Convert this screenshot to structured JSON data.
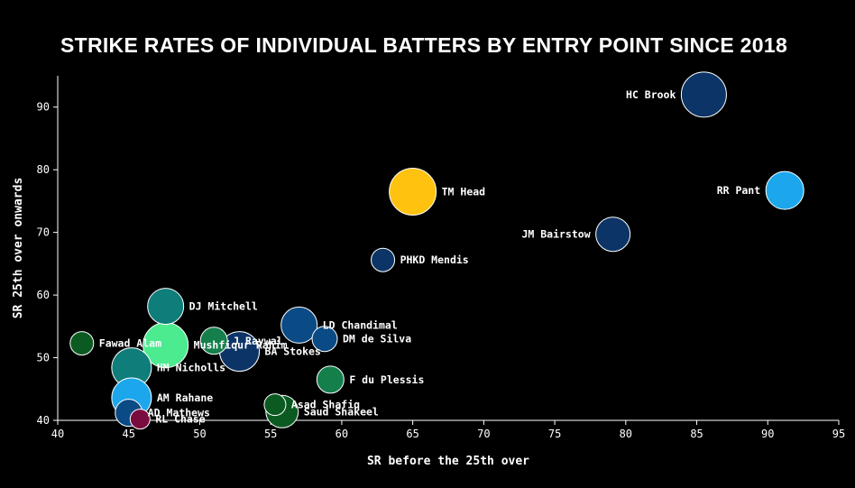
{
  "chart_data": {
    "type": "scatter",
    "title": "STRIKE RATES OF INDIVIDUAL BATTERS BY ENTRY POINT SINCE 2018",
    "xlabel": "SR before the 25th over",
    "ylabel": "SR 25th over onwards",
    "xlim": [
      40,
      95
    ],
    "ylim": [
      40,
      95
    ],
    "xticks": [
      40,
      45,
      50,
      55,
      60,
      65,
      70,
      75,
      80,
      85,
      90,
      95
    ],
    "yticks": [
      40,
      50,
      60,
      70,
      80,
      90
    ],
    "grid": false,
    "points": [
      {
        "name": "HC Brook",
        "x": 85.5,
        "y": 92.0,
        "r": 25,
        "color": "#0d3466",
        "label_side": "left"
      },
      {
        "name": "RR Pant",
        "x": 91.2,
        "y": 76.7,
        "r": 21,
        "color": "#1ca7ec",
        "label_side": "left"
      },
      {
        "name": "JM Bairstow",
        "x": 79.1,
        "y": 69.7,
        "r": 19,
        "color": "#0d3466",
        "label_side": "left"
      },
      {
        "name": "TM Head",
        "x": 65.0,
        "y": 76.5,
        "r": 26,
        "color": "#ffc20e",
        "label_side": "right"
      },
      {
        "name": "PHKD Mendis",
        "x": 62.9,
        "y": 65.6,
        "r": 13,
        "color": "#0d3466",
        "label_side": "right"
      },
      {
        "name": "DJ Mitchell",
        "x": 47.6,
        "y": 58.2,
        "r": 20,
        "color": "#0f7d7a",
        "label_side": "right"
      },
      {
        "name": "LD Chandimal",
        "x": 57.0,
        "y": 55.2,
        "r": 20,
        "color": "#0a4a85",
        "label_side": "right"
      },
      {
        "name": "DM de Silva",
        "x": 58.8,
        "y": 53.0,
        "r": 14,
        "color": "#0a4a85",
        "label_side": "right"
      },
      {
        "name": "Fawad Alam",
        "x": 41.7,
        "y": 52.3,
        "r": 13,
        "color": "#0b5a22",
        "label_side": "right"
      },
      {
        "name": "Mushfiqur Rahim",
        "x": 47.6,
        "y": 52.0,
        "r": 25,
        "color": "#4ceb8f",
        "label_side": "right"
      },
      {
        "name": "J Raywal",
        "x": 51.0,
        "y": 52.7,
        "r": 15,
        "color": "#157f4b",
        "label_side": "right"
      },
      {
        "name": "BA Stokes",
        "x": 52.8,
        "y": 51.0,
        "r": 22,
        "color": "#0d3466",
        "label_side": "right"
      },
      {
        "name": "HM Nicholls",
        "x": 45.2,
        "y": 48.4,
        "r": 22,
        "color": "#0f7d7a",
        "label_side": "right"
      },
      {
        "name": "F du Plessis",
        "x": 59.2,
        "y": 46.5,
        "r": 15,
        "color": "#157f4b",
        "label_side": "right"
      },
      {
        "name": "AM Rahane",
        "x": 45.2,
        "y": 43.6,
        "r": 22,
        "color": "#1ca7ec",
        "label_side": "right"
      },
      {
        "name": "Asad Shafiq",
        "x": 55.3,
        "y": 42.5,
        "r": 12,
        "color": "#0b5a22",
        "label_side": "right"
      },
      {
        "name": "Saud Shakeel",
        "x": 55.8,
        "y": 41.4,
        "r": 18,
        "color": "#0b5a22",
        "label_side": "right"
      },
      {
        "name": "AD Mathews",
        "x": 45.0,
        "y": 41.2,
        "r": 15,
        "color": "#0a4a85",
        "label_side": "right"
      },
      {
        "name": "RL Chase",
        "x": 45.8,
        "y": 40.2,
        "r": 11,
        "color": "#7a0b3f",
        "label_side": "right"
      }
    ]
  }
}
